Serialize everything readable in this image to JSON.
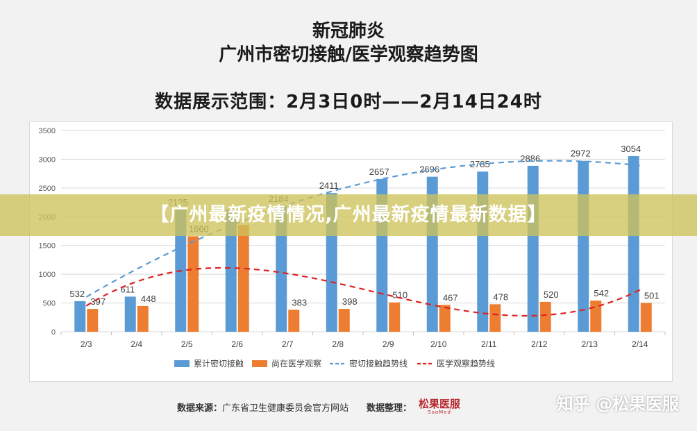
{
  "header": {
    "title_line1": "新冠肺炎",
    "title_line2": "广州市密切接触/医学观察趋势图",
    "range": "数据展示范围：2月3日0时——2月14日24时"
  },
  "banner": "【广州最新疫情情况,广州最新疫情最新数据】",
  "chart_data": {
    "type": "bar",
    "categories": [
      "2/3",
      "2/4",
      "2/5",
      "2/6",
      "2/7",
      "2/8",
      "2/9",
      "2/10",
      "2/11",
      "2/12",
      "2/13",
      "2/14"
    ],
    "series": [
      {
        "name": "累计密切接触",
        "values": [
          532,
          611,
          2125,
          2125,
          2184,
          2411,
          2657,
          2696,
          2785,
          2886,
          2972,
          3054
        ],
        "color": "#5b9bd5"
      },
      {
        "name": "尚在医学观察",
        "values": [
          397,
          448,
          1660,
          1860,
          383,
          398,
          510,
          467,
          478,
          520,
          542,
          501
        ],
        "color": "#ed7d31"
      }
    ],
    "trendlines": [
      {
        "name": "密切接触趋势线",
        "of": "累计密切接触",
        "style": "dashed",
        "color": "#5b9bd5"
      },
      {
        "name": "医学观察趋势线",
        "of": "尚在医学观察",
        "style": "dashed",
        "color": "#e02020"
      }
    ],
    "data_labels": {
      "累计密切接触": [
        "532",
        "611",
        "2125",
        "",
        "2184",
        "2411",
        "2657",
        "2696",
        "2785",
        "2886",
        "2972",
        "3054"
      ],
      "尚在医学观察": [
        "397",
        "448",
        "1660",
        "",
        "383",
        "398",
        "510",
        "467",
        "478",
        "520",
        "542",
        "501"
      ]
    },
    "yticks": [
      0,
      500,
      1000,
      1500,
      2000,
      2500,
      3000,
      3500
    ],
    "ylim": [
      0,
      3500
    ],
    "grid": true,
    "legend": "bottom"
  },
  "footer": {
    "source_label": "数据来源：",
    "source": "广东省卫生健康委员会官方网站",
    "org_label": "数据整理：",
    "logo_text": "松果医服",
    "logo_sub": "SooMed"
  },
  "watermark": "知乎 @松果医服"
}
